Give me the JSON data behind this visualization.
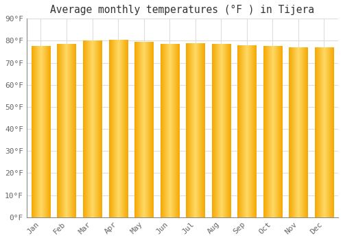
{
  "title": "Average monthly temperatures (°F ) in Tijera",
  "months": [
    "Jan",
    "Feb",
    "Mar",
    "Apr",
    "May",
    "Jun",
    "Jul",
    "Aug",
    "Sep",
    "Oct",
    "Nov",
    "Dec"
  ],
  "values": [
    77.5,
    78.5,
    80.0,
    80.5,
    79.5,
    78.5,
    78.8,
    78.5,
    78.0,
    77.5,
    77.0,
    77.0
  ],
  "ylim": [
    0,
    90
  ],
  "yticks": [
    0,
    10,
    20,
    30,
    40,
    50,
    60,
    70,
    80,
    90
  ],
  "ytick_labels": [
    "0°F",
    "10°F",
    "20°F",
    "30°F",
    "40°F",
    "50°F",
    "60°F",
    "70°F",
    "80°F",
    "90°F"
  ],
  "background_color": "#ffffff",
  "grid_color": "#dddddd",
  "title_fontsize": 10.5,
  "tick_fontsize": 8,
  "bar_edge_color": "#F5A800",
  "bar_center_color": "#FFD966",
  "bar_width": 0.72,
  "spine_color": "#888888"
}
